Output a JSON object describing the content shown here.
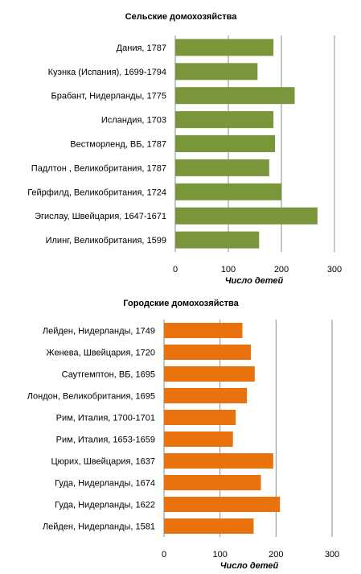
{
  "chart_data": [
    {
      "type": "bar",
      "orientation": "horizontal",
      "title": "Сельские домохозяйства",
      "xlabel": "Число детей",
      "ylabel": "",
      "xlim": [
        0,
        300
      ],
      "ticks": [
        0,
        100,
        200,
        300
      ],
      "grid": true,
      "color": "#7a963a",
      "categories": [
        "Дания, 1787",
        "Куэнка (Испания), 1699-1794",
        "Брабант, Нидерланды, 1775",
        "Исландия, 1703",
        "Вестморленд, ВБ, 1787",
        "Падлтон , Великобритания, 1787",
        "Гейрфилд, Великобритания, 1724",
        "Эгислау, Швейцария,  1647-1671",
        "Илинг, Великобритания, 1599"
      ],
      "values": [
        185,
        155,
        225,
        185,
        188,
        177,
        200,
        268,
        158
      ]
    },
    {
      "type": "bar",
      "orientation": "horizontal",
      "title": "Городские домохозяйства",
      "xlabel": "Число детей",
      "ylabel": "",
      "xlim": [
        0,
        300
      ],
      "ticks": [
        0,
        100,
        200,
        300
      ],
      "grid": true,
      "color": "#e8730e",
      "categories": [
        "Лейден, Нидерланды, 1749",
        "Женева, Швейцария, 1720",
        "Саутгемптон, ВБ, 1695",
        "Лондон, Великобритания,  1695",
        "Рим, Италия,  1700-1701",
        "Рим, Италия,  1653-1659",
        "Цюрих, Швейцария,  1637",
        "Гуда, Нидерланды, 1674",
        "Гуда, Нидерланды, 1622",
        "Лейден, Нидерланды, 1581"
      ],
      "values": [
        140,
        155,
        162,
        148,
        128,
        123,
        195,
        173,
        207,
        160
      ]
    }
  ]
}
